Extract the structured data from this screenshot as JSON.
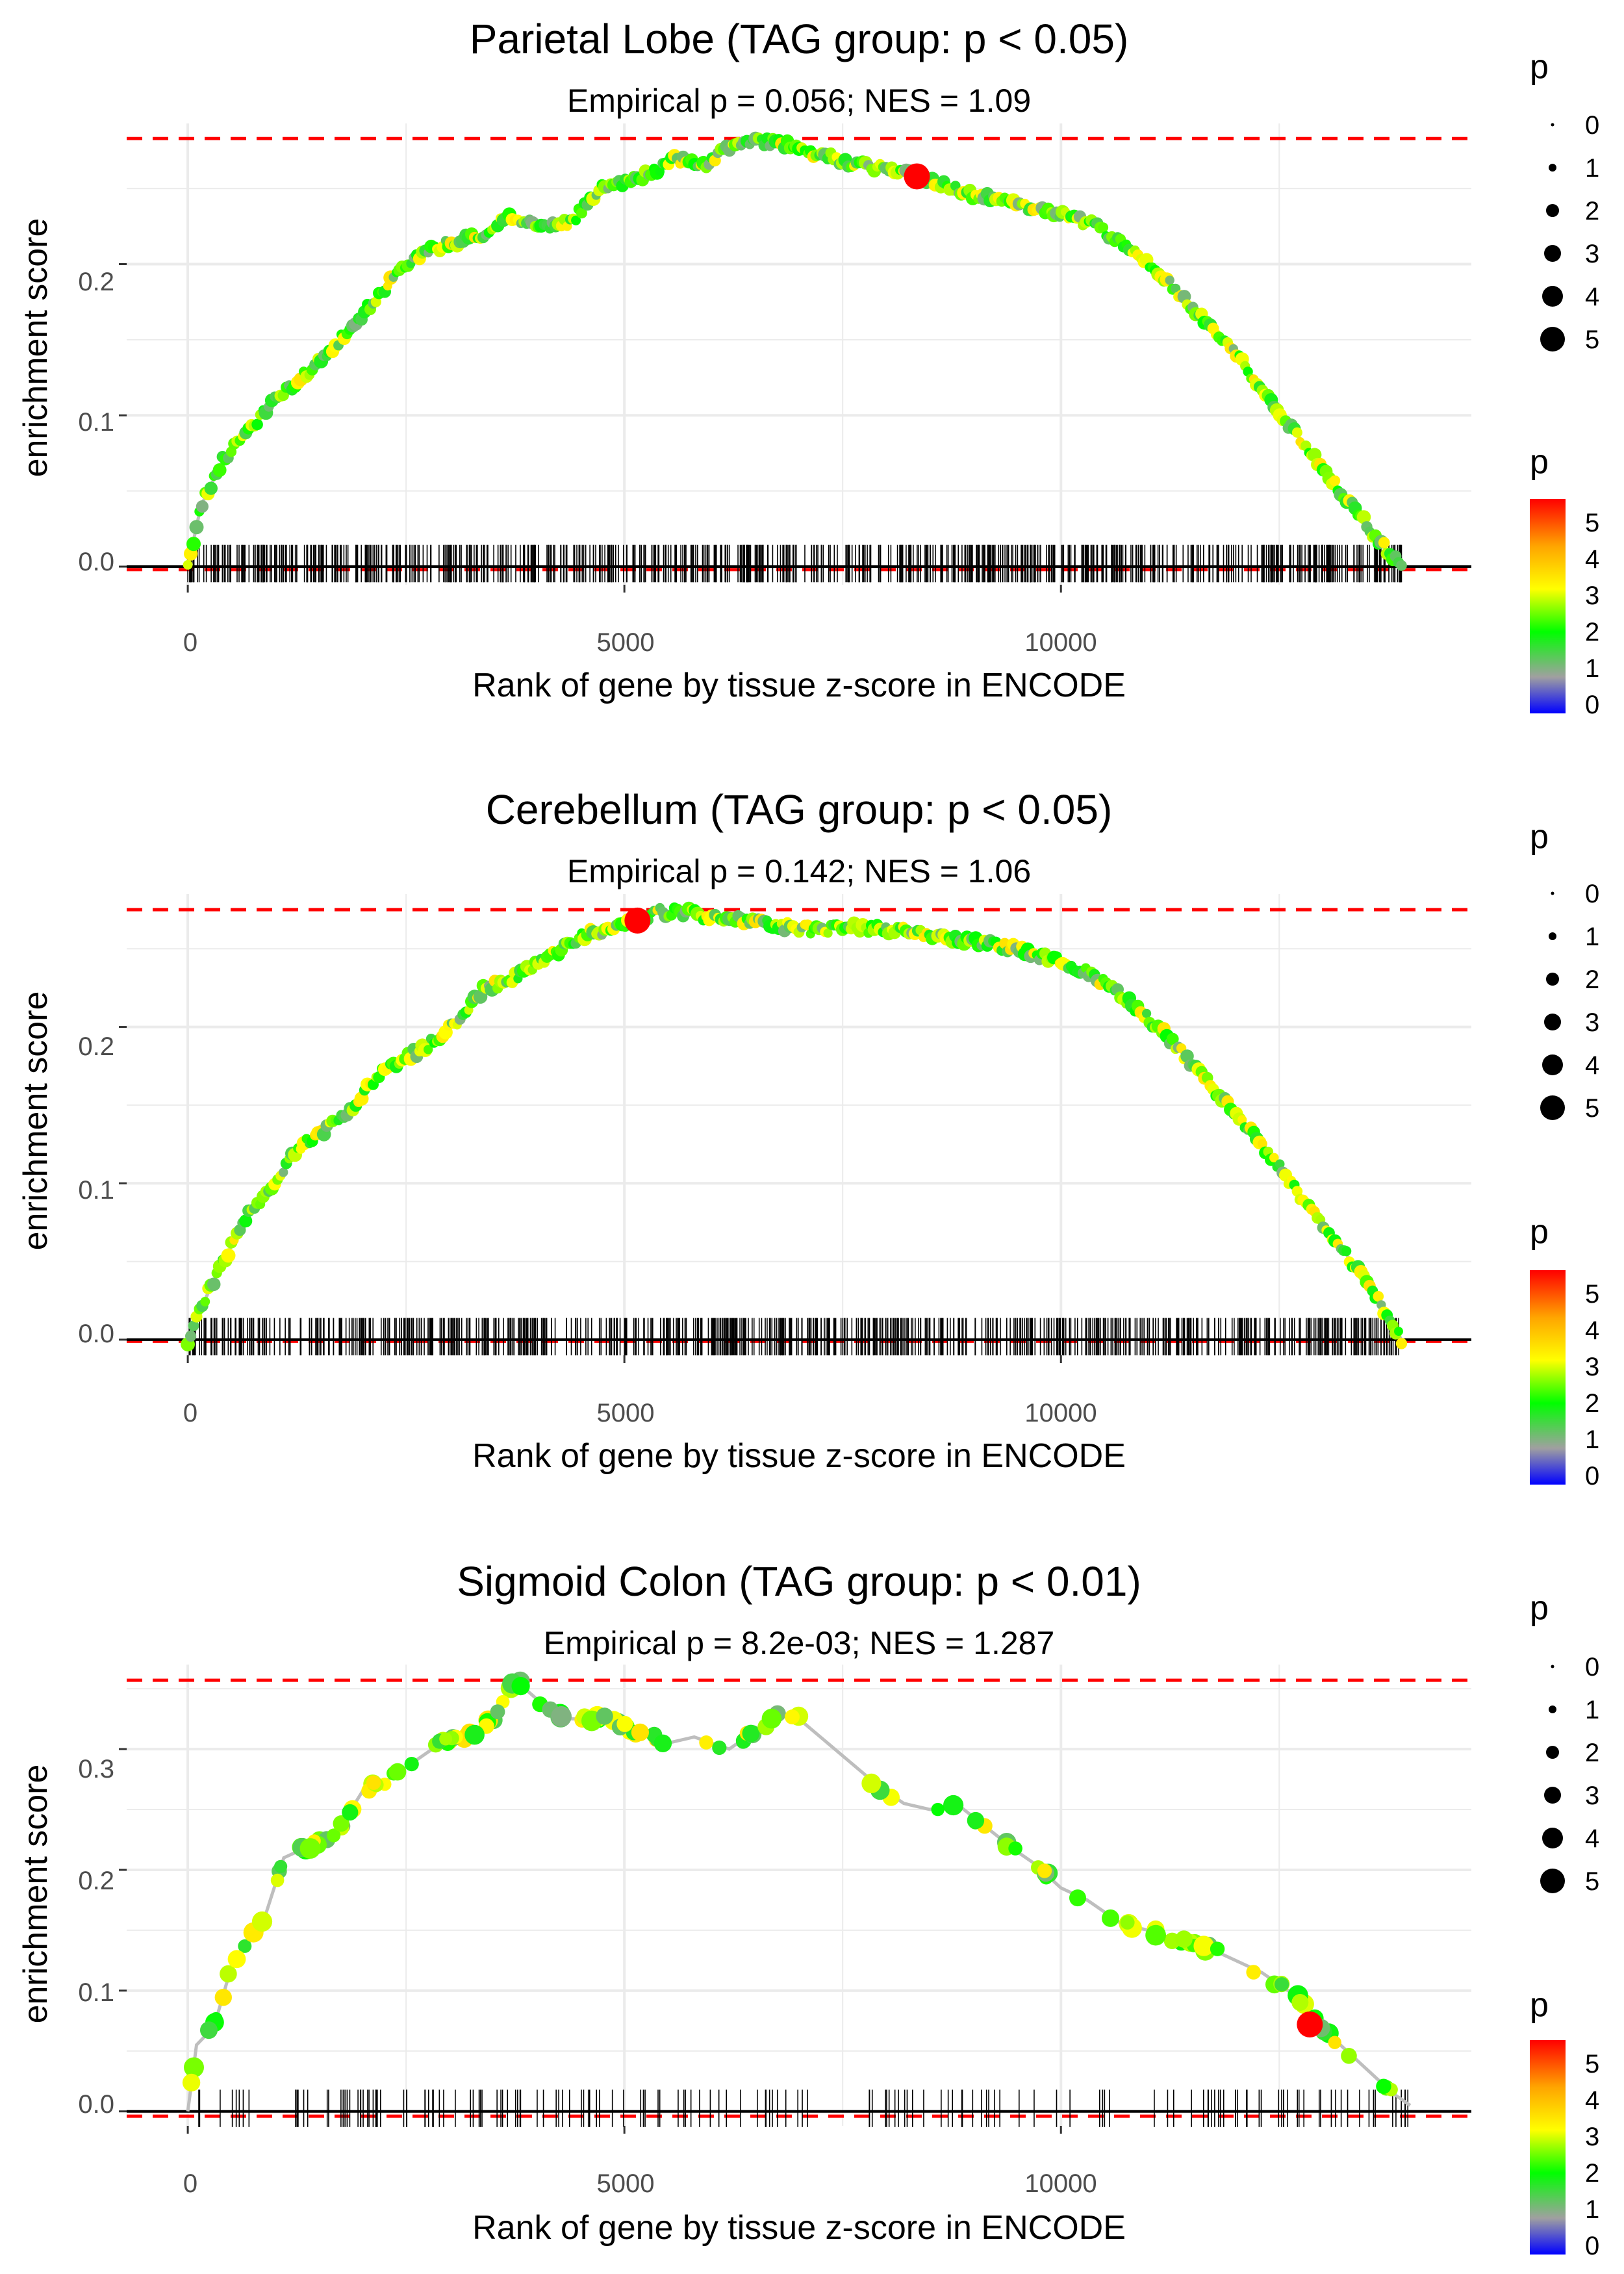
{
  "figure": {
    "panel_count": 3,
    "colors": {
      "grid": "#ebebeb",
      "line": "#bebebe",
      "max_line": "#ff0000",
      "rug": "#000000",
      "leading_edge": "#ff0000",
      "gradient": [
        "#0000ff",
        "#a0a0a0",
        "#00ff00",
        "#ffff00",
        "#ffa500",
        "#ff0000"
      ]
    }
  },
  "chart_data": [
    {
      "type": "line",
      "title": "Parietal Lobe (TAG group: p < 0.05)",
      "subtitle": "Empirical p = 0.056; NES = 1.09",
      "xlabel": "Rank of gene by tissue z-score in ENCODE",
      "ylabel": "enrichment score",
      "xlim": [
        -700,
        14700
      ],
      "ylim": [
        -0.012,
        0.293
      ],
      "x_ticks": [
        0,
        5000,
        10000
      ],
      "x_tick_labels": [
        "0",
        "5000",
        "10000"
      ],
      "y_ticks": [
        0.0,
        0.1,
        0.2
      ],
      "y_tick_labels": [
        "0.0",
        "0.1",
        "0.2"
      ],
      "max_es": 0.283,
      "min_es": -0.002,
      "leading_edge": {
        "x": 8350,
        "y": 0.258
      },
      "curve_x": [
        0,
        150,
        400,
        700,
        1000,
        1300,
        1600,
        1900,
        2200,
        2500,
        2800,
        3100,
        3400,
        3700,
        4000,
        4200,
        4400,
        4700,
        5000,
        5300,
        5600,
        5900,
        6200,
        6500,
        6800,
        7100,
        7400,
        7700,
        8000,
        8350,
        8700,
        9000,
        9300,
        9600,
        10000,
        10400,
        10800,
        11200,
        11600,
        12000,
        12400,
        12800,
        13200,
        13600,
        13900
      ],
      "curve_y": [
        0.0,
        0.04,
        0.07,
        0.09,
        0.11,
        0.125,
        0.14,
        0.16,
        0.18,
        0.2,
        0.21,
        0.215,
        0.22,
        0.232,
        0.226,
        0.225,
        0.228,
        0.25,
        0.255,
        0.26,
        0.27,
        0.265,
        0.278,
        0.282,
        0.28,
        0.275,
        0.27,
        0.265,
        0.263,
        0.258,
        0.252,
        0.246,
        0.244,
        0.238,
        0.233,
        0.225,
        0.21,
        0.19,
        0.165,
        0.14,
        0.11,
        0.08,
        0.05,
        0.02,
        0.0
      ],
      "rug_density": "dense",
      "rug_range": [
        0,
        13900
      ],
      "point_color_range": [
        1.2,
        3.6
      ]
    },
    {
      "type": "line",
      "title": "Cerebellum (TAG group: p < 0.05)",
      "subtitle": "Empirical p = 0.142; NES = 1.06",
      "xlabel": "Rank of gene by tissue z-score in ENCODE",
      "ylabel": "enrichment score",
      "xlim": [
        -700,
        14700
      ],
      "ylim": [
        -0.01,
        0.285
      ],
      "x_ticks": [
        0,
        5000,
        10000
      ],
      "x_tick_labels": [
        "0",
        "5000",
        "10000"
      ],
      "y_ticks": [
        0.0,
        0.1,
        0.2
      ],
      "y_tick_labels": [
        "0.0",
        "0.1",
        "0.2"
      ],
      "max_es": 0.275,
      "min_es": -0.001,
      "leading_edge": {
        "x": 5150,
        "y": 0.268
      },
      "curve_x": [
        0,
        150,
        400,
        700,
        1000,
        1300,
        1600,
        1900,
        2200,
        2500,
        2800,
        3100,
        3400,
        3700,
        4000,
        4300,
        4600,
        4900,
        5150,
        5400,
        5700,
        6000,
        6300,
        6600,
        6900,
        7200,
        7500,
        7800,
        8100,
        8400,
        8700,
        9000,
        9300,
        9600,
        10000,
        10400,
        10800,
        11200,
        11600,
        12000,
        12400,
        12800,
        13200,
        13600,
        13900
      ],
      "curve_y": [
        0.0,
        0.02,
        0.05,
        0.08,
        0.1,
        0.125,
        0.135,
        0.15,
        0.17,
        0.18,
        0.19,
        0.205,
        0.225,
        0.23,
        0.24,
        0.25,
        0.26,
        0.263,
        0.268,
        0.274,
        0.273,
        0.27,
        0.268,
        0.266,
        0.264,
        0.262,
        0.264,
        0.263,
        0.262,
        0.26,
        0.258,
        0.255,
        0.252,
        0.248,
        0.242,
        0.232,
        0.215,
        0.195,
        0.17,
        0.145,
        0.118,
        0.088,
        0.06,
        0.028,
        0.0
      ],
      "rug_density": "dense",
      "rug_range": [
        0,
        13900
      ],
      "point_color_range": [
        1.2,
        3.6
      ]
    },
    {
      "type": "line",
      "title": "Sigmoid Colon (TAG group: p < 0.01)",
      "subtitle": "Empirical p = 8.2e-03; NES = 1.287",
      "xlabel": "Rank of gene by tissue z-score in ENCODE",
      "ylabel": "enrichment score",
      "xlim": [
        -700,
        14700
      ],
      "ylim": [
        -0.012,
        0.37
      ],
      "x_ticks": [
        0,
        5000,
        10000
      ],
      "x_tick_labels": [
        "0",
        "5000",
        "10000"
      ],
      "y_ticks": [
        0.0,
        0.1,
        0.2,
        0.3
      ],
      "y_tick_labels": [
        "0.0",
        "0.1",
        "0.2",
        "0.3"
      ],
      "max_es": 0.357,
      "min_es": -0.004,
      "leading_edge": {
        "x": 12850,
        "y": 0.072
      },
      "curve_x": [
        0,
        100,
        300,
        500,
        700,
        900,
        1100,
        1400,
        1700,
        2000,
        2300,
        2600,
        2900,
        3200,
        3500,
        3750,
        4100,
        4400,
        4800,
        5100,
        5500,
        5800,
        6200,
        6500,
        6800,
        7000,
        7900,
        8200,
        8500,
        8800,
        9500,
        9700,
        10000,
        10300,
        10700,
        11000,
        11400,
        11700,
        12000,
        12300,
        12700,
        12900,
        13200,
        13500,
        13800,
        14000
      ],
      "curve_y": [
        0.0,
        0.055,
        0.07,
        0.12,
        0.14,
        0.165,
        0.21,
        0.22,
        0.23,
        0.265,
        0.275,
        0.29,
        0.305,
        0.31,
        0.325,
        0.357,
        0.335,
        0.325,
        0.325,
        0.315,
        0.305,
        0.31,
        0.3,
        0.315,
        0.33,
        0.325,
        0.27,
        0.255,
        0.25,
        0.255,
        0.215,
        0.205,
        0.185,
        0.175,
        0.155,
        0.15,
        0.14,
        0.135,
        0.125,
        0.115,
        0.095,
        0.075,
        0.055,
        0.035,
        0.015,
        0.005
      ],
      "rug_density": "sparse",
      "rug_range": [
        0,
        14000
      ],
      "point_color_range": [
        1.2,
        3.6
      ]
    }
  ],
  "legends": [
    {
      "size_title": "p",
      "size_labels": [
        "0",
        "1",
        "2",
        "3",
        "4",
        "5"
      ],
      "color_title": "p",
      "color_labels": [
        "5",
        "4",
        "3",
        "2",
        "1",
        "0"
      ]
    },
    {
      "size_title": "p",
      "size_labels": [
        "0",
        "1",
        "2",
        "3",
        "4",
        "5"
      ],
      "color_title": "p",
      "color_labels": [
        "5",
        "4",
        "3",
        "2",
        "1",
        "0"
      ]
    },
    {
      "size_title": "p",
      "size_labels": [
        "0",
        "1",
        "2",
        "3",
        "4",
        "5"
      ],
      "color_title": "p",
      "color_labels": [
        "5",
        "4",
        "3",
        "2",
        "1",
        "0"
      ]
    }
  ]
}
